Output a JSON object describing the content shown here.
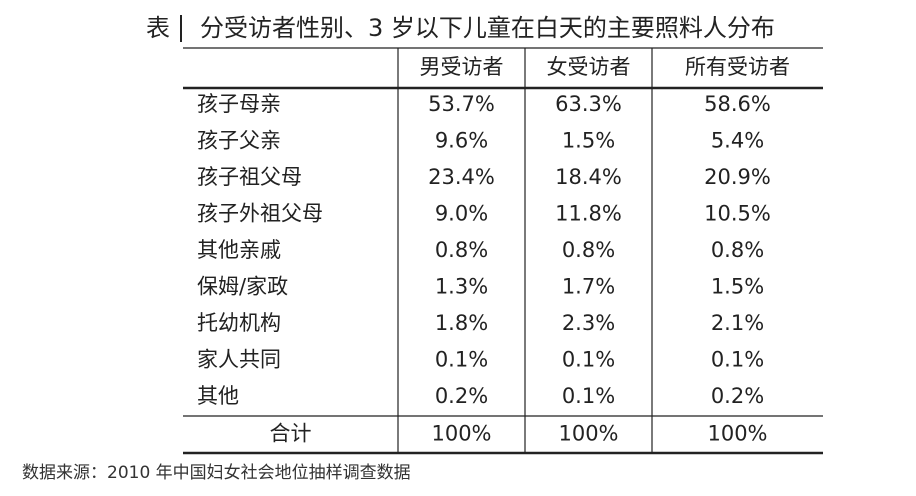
{
  "title_label": "表",
  "title": "分受访者性别、3 岁以下儿童在白天的主要照料人分布",
  "table": {
    "headers": [
      "男受访者",
      "女受访者",
      "所有受访者"
    ],
    "rows": [
      {
        "label": "孩子母亲",
        "values": [
          "53.7%",
          "63.3%",
          "58.6%"
        ]
      },
      {
        "label": "孩子父亲",
        "values": [
          "9.6%",
          "1.5%",
          "5.4%"
        ]
      },
      {
        "label": "孩子祖父母",
        "values": [
          "23.4%",
          "18.4%",
          "20.9%"
        ]
      },
      {
        "label": "孩子外祖父母",
        "values": [
          "9.0%",
          "11.8%",
          "10.5%"
        ]
      },
      {
        "label": "其他亲戚",
        "values": [
          "0.8%",
          "0.8%",
          "0.8%"
        ]
      },
      {
        "label": "保姆/家政",
        "values": [
          "1.3%",
          "1.7%",
          "1.5%"
        ]
      },
      {
        "label": "托幼机构",
        "values": [
          "1.8%",
          "2.3%",
          "2.1%"
        ]
      },
      {
        "label": "家人共同",
        "values": [
          "0.1%",
          "0.1%",
          "0.1%"
        ]
      },
      {
        "label": "其他",
        "values": [
          "0.2%",
          "0.1%",
          "0.2%"
        ]
      }
    ],
    "total": {
      "label": "合计",
      "values": [
        "100%",
        "100%",
        "100%"
      ]
    }
  },
  "source": "数据来源：2010 年中国妇女社会地位抽样调查数据"
}
